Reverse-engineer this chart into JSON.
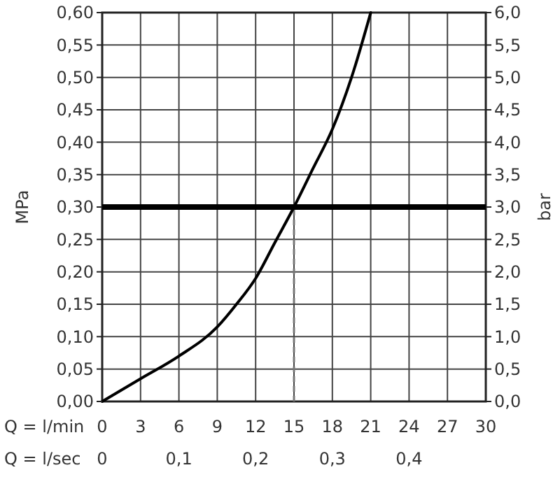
{
  "chart_data": {
    "type": "line",
    "xlabel": "Q = l/min",
    "x2label": "Q = l/sec",
    "ylabel": "MPa",
    "y2label": "bar",
    "x": [
      0,
      3,
      6,
      9,
      10.5,
      12,
      13.5,
      15,
      16.5,
      18,
      19.5,
      21
    ],
    "series": [
      {
        "color": "#000000",
        "values": [
          0,
          0.035,
          0.07,
          0.115,
          0.15,
          0.19,
          0.245,
          0.3,
          0.36,
          0.42,
          0.5,
          0.6
        ]
      }
    ],
    "xlim": [
      0,
      30
    ],
    "xticks": [
      0,
      3,
      6,
      9,
      12,
      15,
      18,
      21,
      24,
      27,
      30
    ],
    "x2lim": [
      0,
      0.5
    ],
    "x2ticks": [
      0,
      {
        "value": 0.1,
        "label": "0,1"
      },
      {
        "value": 0.2,
        "label": "0,2"
      },
      {
        "value": 0.3,
        "label": "0,3"
      },
      {
        "value": 0.4,
        "label": "0,4"
      }
    ],
    "ylim": [
      0,
      0.6
    ],
    "yticks": [
      {
        "value": 0,
        "label": "0,00"
      },
      {
        "value": 0.05,
        "label": "0,05"
      },
      {
        "value": 0.1,
        "label": "0,10"
      },
      {
        "value": 0.15,
        "label": "0,15"
      },
      {
        "value": 0.2,
        "label": "0,20"
      },
      {
        "value": 0.25,
        "label": "0,25"
      },
      {
        "value": 0.3,
        "label": "0,30"
      },
      {
        "value": 0.35,
        "label": "0,35"
      },
      {
        "value": 0.4,
        "label": "0,40"
      },
      {
        "value": 0.45,
        "label": "0,45"
      },
      {
        "value": 0.5,
        "label": "0,50"
      },
      {
        "value": 0.55,
        "label": "0,55"
      },
      {
        "value": 0.6,
        "label": "0,60"
      }
    ],
    "y2lim": [
      0,
      6
    ],
    "y2ticks": [
      {
        "value": 0,
        "label": "0,0"
      },
      {
        "value": 0.5,
        "label": "0,5"
      },
      {
        "value": 1,
        "label": "1,0"
      },
      {
        "value": 1.5,
        "label": "1,5"
      },
      {
        "value": 2,
        "label": "2,0"
      },
      {
        "value": 2.5,
        "label": "2,5"
      },
      {
        "value": 3,
        "label": "3,0"
      },
      {
        "value": 3.5,
        "label": "3,5"
      },
      {
        "value": 4,
        "label": "4,0"
      },
      {
        "value": 4.5,
        "label": "4,5"
      },
      {
        "value": 5,
        "label": "5,0"
      },
      {
        "value": 5.5,
        "label": "5,5"
      },
      {
        "value": 6,
        "label": "6,0"
      }
    ],
    "ref_lines": [
      {
        "axis": "y",
        "value": 0.3,
        "color": "#000000",
        "line_style": "solid"
      },
      {
        "axis": "x",
        "value": 15,
        "color": "#777777",
        "line_style": "dashed"
      }
    ],
    "grid": true,
    "marker": "none",
    "line_style": "solid"
  }
}
